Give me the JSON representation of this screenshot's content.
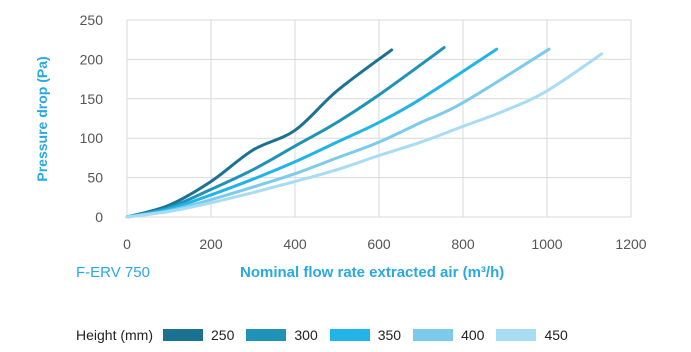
{
  "chart_data": {
    "type": "line",
    "ylabel": "Pressure drop (Pa)",
    "xlabel": "Nominal flow rate extracted air (m³/h)",
    "model_label": "F-ERV 750",
    "xlim": [
      0,
      1200
    ],
    "ylim": [
      0,
      250
    ],
    "xticks": [
      "0",
      "200",
      "400",
      "600",
      "800",
      "1000",
      "1200"
    ],
    "yticks": [
      "0",
      "50",
      "100",
      "150",
      "200",
      "250"
    ],
    "grid": true,
    "legend_title": "Height (mm)",
    "legend_position": "bottom",
    "series": [
      {
        "name": "250",
        "color": "#1b7290",
        "x": [
          0,
          100,
          200,
          300,
          400,
          500,
          630
        ],
        "y": [
          0,
          15,
          45,
          85,
          110,
          160,
          212
        ]
      },
      {
        "name": "300",
        "color": "#1f92b8",
        "x": [
          0,
          100,
          200,
          300,
          400,
          500,
          600,
          755
        ],
        "y": [
          0,
          12,
          35,
          60,
          90,
          120,
          155,
          215
        ]
      },
      {
        "name": "350",
        "color": "#22b4e6",
        "x": [
          0,
          100,
          200,
          300,
          400,
          500,
          600,
          700,
          880
        ],
        "y": [
          0,
          10,
          28,
          48,
          70,
          95,
          120,
          150,
          213
        ]
      },
      {
        "name": "400",
        "color": "#7ccbec",
        "x": [
          0,
          100,
          200,
          300,
          400,
          500,
          600,
          700,
          800,
          1005
        ],
        "y": [
          0,
          8,
          22,
          38,
          55,
          75,
          95,
          120,
          145,
          213
        ]
      },
      {
        "name": "450",
        "color": "#a8dcf3",
        "x": [
          0,
          100,
          200,
          300,
          400,
          500,
          600,
          700,
          800,
          900,
          1000,
          1130
        ],
        "y": [
          0,
          7,
          18,
          31,
          45,
          60,
          78,
          95,
          115,
          135,
          160,
          207
        ]
      }
    ]
  }
}
